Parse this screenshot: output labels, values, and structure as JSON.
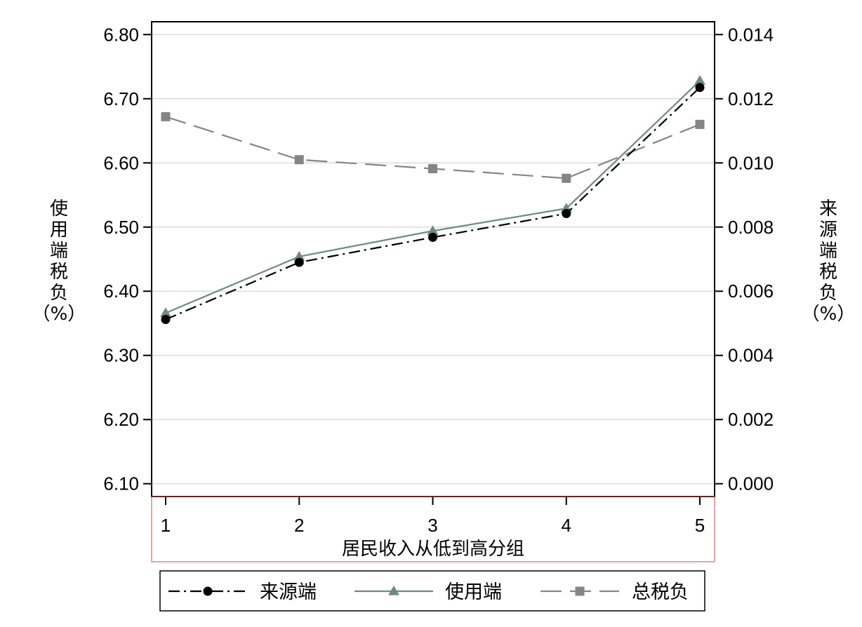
{
  "chart_data": {
    "type": "line",
    "title": "",
    "xlabel": "居民收入从低到高分组",
    "ylabel_left_chars": [
      "使",
      "用",
      "端",
      "税",
      "负",
      "（%）"
    ],
    "ylabel_right_chars": [
      "来",
      "源",
      "端",
      "税",
      "负",
      "（%）"
    ],
    "categories": [
      "1",
      "2",
      "3",
      "4",
      "5"
    ],
    "left_axis": {
      "ylim": [
        6.08,
        6.82
      ],
      "ticks": [
        6.1,
        6.2,
        6.3,
        6.4,
        6.5,
        6.6,
        6.7,
        6.8
      ],
      "tick_labels": [
        "6.10",
        "6.20",
        "6.30",
        "6.40",
        "6.50",
        "6.60",
        "6.70",
        "6.80"
      ]
    },
    "right_axis": {
      "ticks": [
        0.0,
        0.002,
        0.004,
        0.006,
        0.008,
        0.01,
        0.012,
        0.014
      ],
      "tick_labels": [
        "0.000",
        "0.002",
        "0.004",
        "0.006",
        "0.008",
        "0.010",
        "0.012",
        "0.014"
      ]
    },
    "grid": true,
    "legend_position": "bottom",
    "series": [
      {
        "name": "来源端",
        "axis": "right",
        "values": [
          0.00512,
          0.0069,
          0.00768,
          0.00842,
          0.01235
        ],
        "color": "#000000",
        "marker": "circle",
        "dash": "16,6,3,6"
      },
      {
        "name": "使用端",
        "axis": "left",
        "values": [
          6.366,
          6.454,
          6.494,
          6.529,
          6.728
        ],
        "color": "#6f8a80",
        "marker": "triangle",
        "dash": ""
      },
      {
        "name": "总税负",
        "axis": "left",
        "values": [
          6.672,
          6.605,
          6.591,
          6.576,
          6.66
        ],
        "color": "#858585",
        "marker": "square",
        "dash": "30,12"
      }
    ]
  }
}
